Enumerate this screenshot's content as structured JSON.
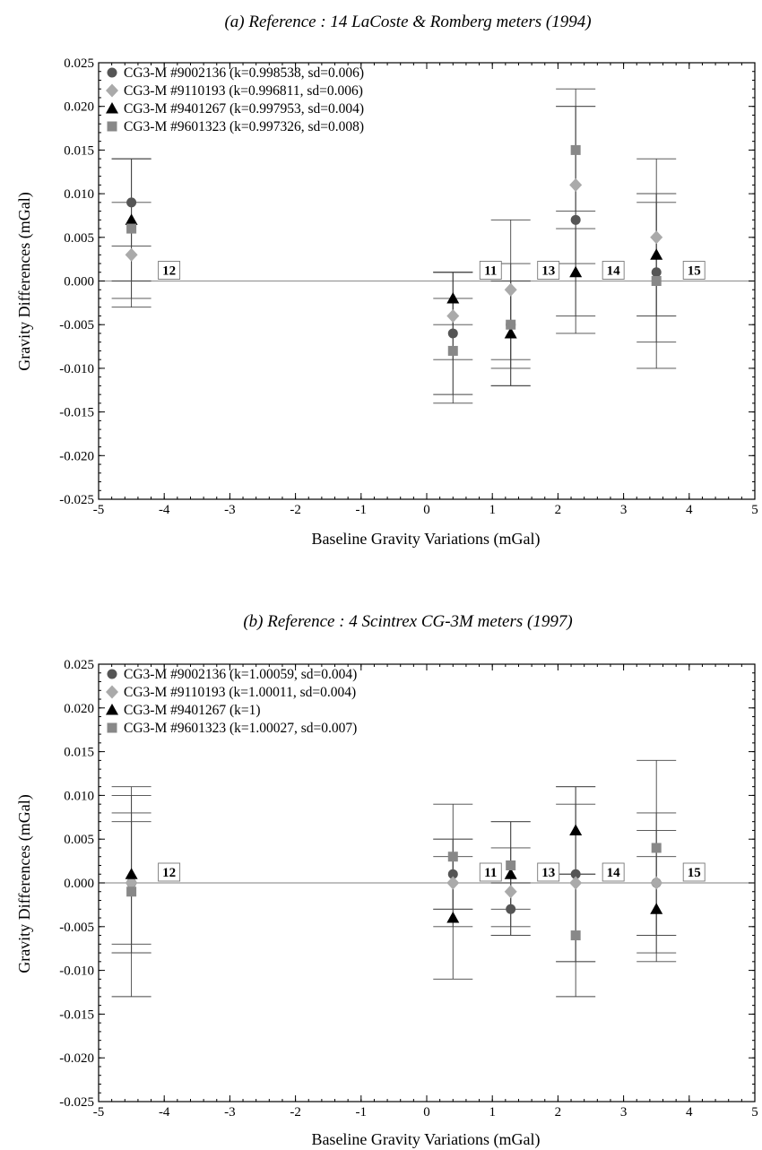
{
  "chart_data": [
    {
      "type": "scatter",
      "title": "(a) Reference : 14 LaCoste & Romberg meters (1994)",
      "xlabel": "Baseline Gravity Variations (mGal)",
      "ylabel": "Gravity Differences (mGal)",
      "xlim": [
        -5,
        5
      ],
      "ylim": [
        -0.025,
        0.025
      ],
      "x_ticks": [
        "-5",
        "-4",
        "-3",
        "-2",
        "-1",
        "0",
        "1",
        "2",
        "3",
        "4",
        "5"
      ],
      "y_ticks": [
        "-0.025",
        "-0.020",
        "-0.015",
        "-0.010",
        "-0.005",
        "0.000",
        "0.005",
        "0.010",
        "0.015",
        "0.020",
        "0.025"
      ],
      "grid": false,
      "legend_position": "top-left",
      "stations": [
        {
          "label": "12",
          "x": -4.5
        },
        {
          "label": "11",
          "x": 0.4
        },
        {
          "label": "13",
          "x": 1.28
        },
        {
          "label": "14",
          "x": 2.27
        },
        {
          "label": "15",
          "x": 3.5
        }
      ],
      "series": [
        {
          "name": "CG3-M #9002136  (k=0.998538, sd=0.006)",
          "marker": "circle",
          "color": "#555555",
          "points": [
            {
              "x": -4.5,
              "y": 0.009,
              "err": 0.005
            },
            {
              "x": 0.4,
              "y": -0.006,
              "err": 0.007
            },
            {
              "x": 1.28,
              "y": -0.005,
              "err": 0.005
            },
            {
              "x": 2.27,
              "y": 0.007,
              "err": 0.013
            },
            {
              "x": 3.5,
              "y": 0.001,
              "err": 0.008
            }
          ]
        },
        {
          "name": "CG3-M #9110193  (k=0.996811, sd=0.006)",
          "marker": "diamond",
          "color": "#aaaaaa",
          "points": [
            {
              "x": -4.5,
              "y": 0.003,
              "err": 0.006
            },
            {
              "x": 0.4,
              "y": -0.004,
              "err": 0.005
            },
            {
              "x": 1.28,
              "y": -0.001,
              "err": 0.008
            },
            {
              "x": 2.27,
              "y": 0.011,
              "err": 0.009
            },
            {
              "x": 3.5,
              "y": 0.005,
              "err": 0.009
            }
          ]
        },
        {
          "name": "CG3-M #9401267  (k=0.997953, sd=0.004)",
          "marker": "triangle",
          "color": "#000000",
          "points": [
            {
              "x": -4.5,
              "y": 0.007,
              "err": 0.007
            },
            {
              "x": 0.4,
              "y": -0.002,
              "err": 0.003
            },
            {
              "x": 1.28,
              "y": -0.006,
              "err": 0.006
            },
            {
              "x": 2.27,
              "y": 0.001,
              "err": 0.005
            },
            {
              "x": 3.5,
              "y": 0.003,
              "err": 0.007
            }
          ]
        },
        {
          "name": "CG3-M #9601323  (k=0.997326, sd=0.008)",
          "marker": "square",
          "color": "#888888",
          "points": [
            {
              "x": -4.5,
              "y": 0.006,
              "err": 0.008
            },
            {
              "x": 0.4,
              "y": -0.008,
              "err": 0.006
            },
            {
              "x": 1.28,
              "y": -0.005,
              "err": 0.007
            },
            {
              "x": 2.27,
              "y": 0.015,
              "err": 0.007
            },
            {
              "x": 3.5,
              "y": 0.0,
              "err": 0.01
            }
          ]
        }
      ]
    },
    {
      "type": "scatter",
      "title": "(b) Reference : 4 Scintrex CG-3M meters (1997)",
      "xlabel": "Baseline Gravity Variations (mGal)",
      "ylabel": "Gravity Differences (mGal)",
      "xlim": [
        -5,
        5
      ],
      "ylim": [
        -0.025,
        0.025
      ],
      "x_ticks": [
        "-5",
        "-4",
        "-3",
        "-2",
        "-1",
        "0",
        "1",
        "2",
        "3",
        "4",
        "5"
      ],
      "y_ticks": [
        "-0.025",
        "-0.020",
        "-0.015",
        "-0.010",
        "-0.005",
        "0.000",
        "0.005",
        "0.010",
        "0.015",
        "0.020",
        "0.025"
      ],
      "grid": false,
      "legend_position": "top-left",
      "stations": [
        {
          "label": "12",
          "x": -4.5
        },
        {
          "label": "11",
          "x": 0.4
        },
        {
          "label": "13",
          "x": 1.28
        },
        {
          "label": "14",
          "x": 2.27
        },
        {
          "label": "15",
          "x": 3.5
        }
      ],
      "series": [
        {
          "name": "CG3-M #9002136  (k=1.00059, sd=0.004)",
          "marker": "circle",
          "color": "#555555",
          "points": [
            {
              "x": -4.5,
              "y": 0.0,
              "err": 0.008
            },
            {
              "x": 0.4,
              "y": 0.001,
              "err": 0.004
            },
            {
              "x": 1.28,
              "y": -0.003,
              "err": 0.003
            },
            {
              "x": 2.27,
              "y": 0.001,
              "err": 0.01
            },
            {
              "x": 3.5,
              "y": 0.0,
              "err": 0.008
            }
          ]
        },
        {
          "name": "CG3-M #9110193  (k=1.00011, sd=0.004)",
          "marker": "diamond",
          "color": "#aaaaaa",
          "points": [
            {
              "x": -4.5,
              "y": 0.0,
              "err": 0.007
            },
            {
              "x": 0.4,
              "y": 0.0,
              "err": 0.005
            },
            {
              "x": 1.28,
              "y": -0.001,
              "err": 0.005
            },
            {
              "x": 2.27,
              "y": 0.0,
              "err": 0.009
            },
            {
              "x": 3.5,
              "y": 0.0,
              "err": 0.006
            }
          ]
        },
        {
          "name": "CG3-M #9401267  (k=1)",
          "marker": "triangle",
          "color": "#000000",
          "points": [
            {
              "x": -4.5,
              "y": 0.001,
              "err": 0.009
            },
            {
              "x": 0.4,
              "y": -0.004,
              "err": 0.007
            },
            {
              "x": 1.28,
              "y": 0.001,
              "err": 0.006
            },
            {
              "x": 2.27,
              "y": 0.006,
              "err": 0.005
            },
            {
              "x": 3.5,
              "y": -0.003,
              "err": 0.006
            }
          ]
        },
        {
          "name": "CG3-M #9601323  (k=1.00027, sd=0.007)",
          "marker": "square",
          "color": "#888888",
          "points": [
            {
              "x": -4.5,
              "y": -0.001,
              "err": 0.012
            },
            {
              "x": 0.4,
              "y": 0.003,
              "err": 0.006
            },
            {
              "x": 1.28,
              "y": 0.002,
              "err": 0.005
            },
            {
              "x": 2.27,
              "y": -0.006,
              "err": 0.007
            },
            {
              "x": 3.5,
              "y": 0.004,
              "err": 0.01
            }
          ]
        }
      ]
    }
  ]
}
